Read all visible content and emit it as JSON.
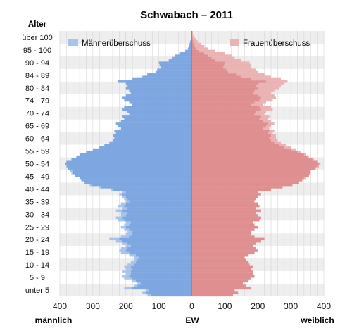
{
  "chart_data": {
    "type": "bar",
    "subtype": "population-pyramid",
    "title": "Schwabach – 2011",
    "y_axis_title": "Alter",
    "x_axis_left_label": "männlich",
    "x_axis_center_label": "EW",
    "x_axis_right_label": "weiblich",
    "x_ticks": [
      400,
      300,
      200,
      100,
      0,
      100,
      200,
      300,
      400
    ],
    "xlim": [
      -400,
      400
    ],
    "grid": true,
    "age_groups": [
      "unter 5",
      "5 - 9",
      "10 - 14",
      "15 - 19",
      "20 - 24",
      "25 - 29",
      "30 - 34",
      "35 - 39",
      "40 - 44",
      "45 - 49",
      "50 - 54",
      "55 - 59",
      "60 - 64",
      "65 - 69",
      "70 - 74",
      "74 - 79",
      "80 - 84",
      "84 - 89",
      "90 - 94",
      "95 - 100",
      "über 100"
    ],
    "legend": [
      {
        "label": "Männerüberschuss",
        "color": "#a9c4ea",
        "position": "top-left"
      },
      {
        "label": "Frauenüberschuss",
        "color": "#eab3b4",
        "position": "top-right"
      }
    ],
    "colors": {
      "male": "#7ea6e0",
      "female": "#df8f90",
      "male_surplus": "#a9c4ea",
      "female_surplus": "#eab3b4",
      "band": "#eeeeee"
    },
    "series": [
      {
        "name": "männlich",
        "values": [
          135,
          150,
          140,
          205,
          175,
          165,
          180,
          205,
          210,
          200,
          210,
          200,
          205,
          195,
          185,
          175,
          175,
          190,
          215,
          220,
          215,
          200,
          210,
          230,
          250,
          215,
          200,
          195,
          205,
          215,
          205,
          200,
          225,
          230,
          215,
          215,
          230,
          210,
          225,
          215,
          200,
          205,
          210,
          220,
          210,
          245,
          280,
          310,
          325,
          335,
          340,
          355,
          365,
          370,
          375,
          380,
          385,
          380,
          365,
          350,
          340,
          320,
          300,
          280,
          265,
          250,
          240,
          235,
          240,
          230,
          235,
          215,
          225,
          230,
          215,
          205,
          210,
          190,
          195,
          210,
          205,
          180,
          190,
          205,
          210,
          200,
          185,
          190,
          200,
          195,
          200,
          225,
          180,
          150,
          135,
          110,
          105,
          95,
          98,
          100,
          70,
          60,
          50,
          38,
          20,
          12,
          9,
          7,
          5,
          3,
          2,
          1,
          1
        ]
      },
      {
        "name": "weiblich",
        "values": [
          125,
          140,
          130,
          180,
          165,
          155,
          170,
          180,
          190,
          185,
          185,
          180,
          185,
          175,
          170,
          165,
          160,
          170,
          190,
          200,
          195,
          185,
          195,
          210,
          220,
          190,
          180,
          180,
          190,
          200,
          190,
          185,
          205,
          210,
          200,
          195,
          210,
          195,
          205,
          200,
          190,
          195,
          200,
          210,
          200,
          240,
          275,
          305,
          325,
          335,
          345,
          355,
          360,
          360,
          375,
          385,
          390,
          380,
          370,
          355,
          345,
          330,
          315,
          300,
          285,
          270,
          260,
          255,
          255,
          245,
          250,
          235,
          240,
          250,
          240,
          230,
          235,
          220,
          225,
          245,
          240,
          215,
          225,
          245,
          255,
          250,
          240,
          250,
          265,
          270,
          280,
          290,
          270,
          240,
          220,
          200,
          195,
          180,
          180,
          175,
          150,
          130,
          120,
          100,
          70,
          50,
          38,
          28,
          18,
          12,
          8,
          4,
          3
        ]
      }
    ]
  }
}
